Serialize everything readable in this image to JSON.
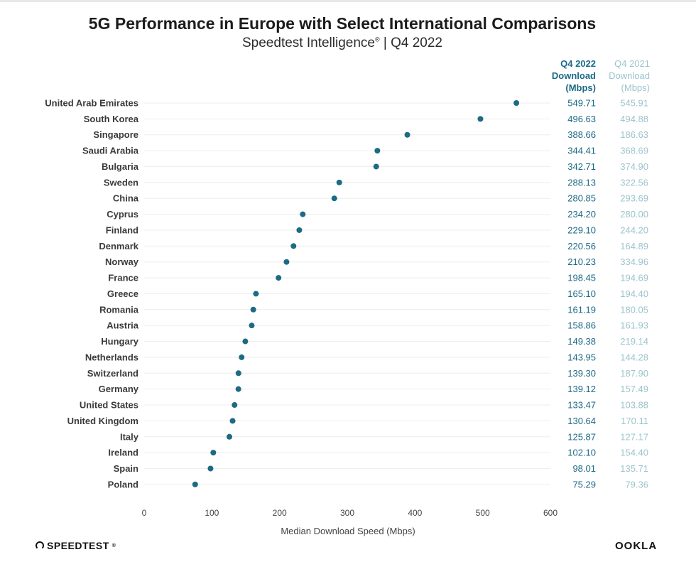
{
  "title": "5G Performance in Europe with Select International Comparisons",
  "subtitle_main": "Speedtest Intelligence",
  "subtitle_mark": "®",
  "subtitle_rest": "| Q4 2022",
  "columns": {
    "q4_2022": [
      "Q4 2022",
      "Download",
      "(Mbps)"
    ],
    "q4_2021": [
      "Q4 2021",
      "Download",
      "(Mbps)"
    ]
  },
  "footer": {
    "left_logo": "SPEEDTEST",
    "left_logo_mark": "®",
    "right_logo": "OOKLA"
  },
  "colors": {
    "dot": "#1c6a84",
    "q4_2022_text": "#1c6a84",
    "q4_2021_text": "#9cc4cd",
    "gridline": "#eeeeee"
  },
  "chart_data": {
    "type": "scatter",
    "xlabel": "Median Download Speed (Mbps)",
    "xlim": [
      0,
      600
    ],
    "xticks": [
      0,
      100,
      200,
      300,
      400,
      500,
      600
    ],
    "grid": "horizontal row lines",
    "categories": [
      "United Arab Emirates",
      "South Korea",
      "Singapore",
      "Saudi Arabia",
      "Bulgaria",
      "Sweden",
      "China",
      "Cyprus",
      "Finland",
      "Denmark",
      "Norway",
      "France",
      "Greece",
      "Romania",
      "Austria",
      "Hungary",
      "Netherlands",
      "Switzerland",
      "Germany",
      "United States",
      "United Kingdom",
      "Italy",
      "Ireland",
      "Spain",
      "Poland"
    ],
    "series": [
      {
        "name": "Q4 2022 Download (Mbps)",
        "values": [
          549.71,
          496.63,
          388.66,
          344.41,
          342.71,
          288.13,
          280.85,
          234.2,
          229.1,
          220.56,
          210.23,
          198.45,
          165.1,
          161.19,
          158.86,
          149.38,
          143.95,
          139.3,
          139.12,
          133.47,
          130.64,
          125.87,
          102.1,
          98.01,
          75.29
        ],
        "labels": [
          "549.71",
          "496.63",
          "388.66",
          "344.41",
          "342.71",
          "288.13",
          "280.85",
          "234.20",
          "229.10",
          "220.56",
          "210.23",
          "198.45",
          "165.10",
          "161.19",
          "158.86",
          "149.38",
          "143.95",
          "139.30",
          "139.12",
          "133.47",
          "130.64",
          "125.87",
          "102.10",
          "98.01",
          "75.29"
        ]
      },
      {
        "name": "Q4 2021 Download (Mbps)",
        "values": [
          545.91,
          494.88,
          186.63,
          368.69,
          374.9,
          322.56,
          293.69,
          280.0,
          244.2,
          164.89,
          334.96,
          194.69,
          194.4,
          180.05,
          161.93,
          219.14,
          144.28,
          187.9,
          157.49,
          103.88,
          170.11,
          127.17,
          154.4,
          135.71,
          79.36
        ],
        "labels": [
          "545.91",
          "494.88",
          "186.63",
          "368.69",
          "374.90",
          "322.56",
          "293.69",
          "280.00",
          "244.20",
          "164.89",
          "334.96",
          "194.69",
          "194.40",
          "180.05",
          "161.93",
          "219.14",
          "144.28",
          "187.90",
          "157.49",
          "103.88",
          "170.11",
          "127.17",
          "154.40",
          "135.71",
          "79.36"
        ]
      }
    ]
  }
}
